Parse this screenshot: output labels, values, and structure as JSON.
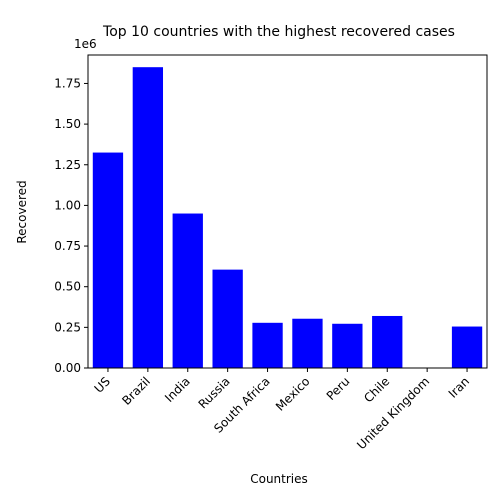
{
  "chart_data": {
    "type": "bar",
    "title": "Top 10 countries with the highest recovered cases",
    "xlabel": "Countries",
    "ylabel": "Recovered",
    "offset_label": "1e6",
    "categories": [
      "US",
      "Brazil",
      "India",
      "Russia",
      "South Africa",
      "Mexico",
      "Peru",
      "Chile",
      "United Kingdom",
      "Iran"
    ],
    "values": [
      1325000,
      1850000,
      950000,
      605000,
      278000,
      303000,
      272000,
      320000,
      0,
      255000
    ],
    "ylim": [
      0,
      1925000
    ],
    "yticks": [
      0,
      250000,
      500000,
      750000,
      1000000,
      1250000,
      1500000,
      1750000
    ],
    "ytick_labels": [
      "0.00",
      "0.25",
      "0.50",
      "0.75",
      "1.00",
      "1.25",
      "1.50",
      "1.75"
    ],
    "bar_color": "#0000ff",
    "grid": false,
    "legend": "none"
  }
}
